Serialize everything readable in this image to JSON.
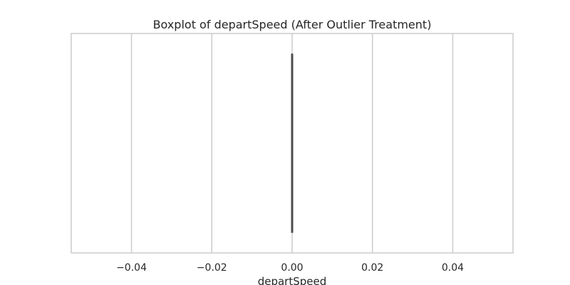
{
  "chart_data": {
    "type": "boxplot",
    "orientation": "horizontal",
    "title": "Boxplot of departSpeed (After Outlier Treatment)",
    "xlabel": "departSpeed",
    "ylabel": "",
    "xlim": [
      -0.055,
      0.055
    ],
    "xticks": [
      -0.04,
      -0.02,
      0.0,
      0.02,
      0.04
    ],
    "xtick_labels": [
      "−0.04",
      "−0.02",
      "0.00",
      "0.02",
      "0.04"
    ],
    "grid": true,
    "series": [
      {
        "min": 0.0,
        "q1": 0.0,
        "median": 0.0,
        "q3": 0.0,
        "max": 0.0
      }
    ],
    "colors": {
      "box": "#4d4d4d",
      "grid": "#cccccc",
      "frame": "#cccccc",
      "text": "#262626"
    }
  }
}
